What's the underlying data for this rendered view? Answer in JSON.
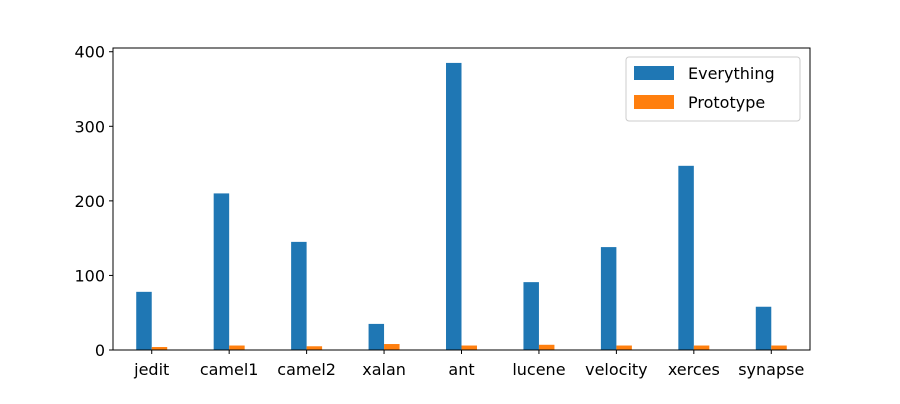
{
  "chart_data": {
    "type": "bar",
    "title": "",
    "xlabel": "",
    "ylabel": "",
    "categories": [
      "jedit",
      "camel1",
      "camel2",
      "xalan",
      "ant",
      "lucene",
      "velocity",
      "xerces",
      "synapse"
    ],
    "series": [
      {
        "name": "Everything",
        "color": "#1f77b4",
        "values": [
          78,
          210,
          145,
          35,
          385,
          91,
          138,
          247,
          58
        ]
      },
      {
        "name": "Prototype",
        "color": "#ff7f0e",
        "values": [
          4,
          6,
          5,
          8,
          6,
          7,
          6,
          6,
          6
        ]
      }
    ],
    "ylim": [
      0,
      405
    ],
    "yticks": [
      0,
      100,
      200,
      300,
      400
    ],
    "grid": false,
    "legend_position": "top-right"
  }
}
